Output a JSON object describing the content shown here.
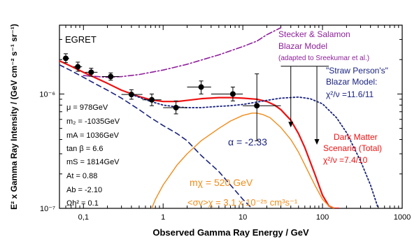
{
  "chart_data": {
    "type": "scatter",
    "xlabel": "Observed Gamma Ray Energy / GeV",
    "ylabel": "E² x Gamma Ray Intensity  / (GeV cm⁻² s⁻¹ sr⁻¹)",
    "xscale": "log",
    "yscale": "log",
    "xlim": [
      0.05,
      1000
    ],
    "ylim": [
      1e-07,
      4e-06
    ],
    "x_ticks": [
      {
        "value": 0.1,
        "label": "0,1"
      },
      {
        "value": 1,
        "label": "1"
      },
      {
        "value": 10,
        "label": "10"
      },
      {
        "value": 100,
        "label": "100"
      },
      {
        "value": 1000,
        "label": "1000"
      }
    ],
    "y_ticks": [
      {
        "value": 1e-07,
        "label": "10⁻⁷"
      },
      {
        "value": 1e-06,
        "label": "10⁻⁶"
      }
    ],
    "grid": false,
    "colors": {
      "data": "#000000",
      "total": "#ee1111",
      "dark_matter": "#f08c1a",
      "background": "#1a237e",
      "blazar_stecker": "#8e1f9a",
      "blazar_straw": "#1a237e",
      "upper_limits": "#000000"
    },
    "data_points": {
      "name": "EGRET",
      "points": [
        {
          "x": 0.06,
          "y": 2.05e-06,
          "xerr": [
            0.055,
            0.066
          ],
          "yerr": [
            1.88e-06,
            2.25e-06
          ]
        },
        {
          "x": 0.085,
          "y": 1.73e-06,
          "xerr": [
            0.075,
            0.096
          ],
          "yerr": [
            1.58e-06,
            1.9e-06
          ]
        },
        {
          "x": 0.125,
          "y": 1.55e-06,
          "xerr": [
            0.105,
            0.15
          ],
          "yerr": [
            1.43e-06,
            1.68e-06
          ]
        },
        {
          "x": 0.22,
          "y": 1.42e-06,
          "xerr": [
            0.17,
            0.28
          ],
          "yerr": [
            1.32e-06,
            1.53e-06
          ]
        },
        {
          "x": 0.4,
          "y": 9.9e-07,
          "xerr": [
            0.3,
            0.55
          ],
          "yerr": [
            9e-07,
            1.09e-06
          ]
        },
        {
          "x": 0.72,
          "y": 8.9e-07,
          "xerr": [
            0.55,
            0.95
          ],
          "yerr": [
            7.9e-07,
            1e-06
          ]
        },
        {
          "x": 1.45,
          "y": 7.6e-07,
          "xerr": [
            1.0,
            2.0
          ],
          "yerr": [
            6.7e-07,
            8.7e-07
          ]
        },
        {
          "x": 3.0,
          "y": 1.15e-06,
          "xerr": [
            2.0,
            4.0
          ],
          "yerr": [
            1e-06,
            1.3e-06
          ]
        },
        {
          "x": 7.5,
          "y": 1e-06,
          "xerr": [
            4.0,
            10.0
          ],
          "yerr": [
            8.7e-07,
            1.15e-06
          ]
        },
        {
          "x": 15.0,
          "y": 7.9e-07,
          "xerr": [
            10.0,
            30.0
          ],
          "yerr": [
            3.9e-07,
            1.5e-06
          ]
        }
      ]
    },
    "upper_limits": [
      {
        "x": 40,
        "y_top": 1.75e-06,
        "y_bottom": 5.1e-07,
        "xerr": [
          30,
          50
        ]
      },
      {
        "x": 85,
        "y_top": 1.75e-06,
        "y_bottom": 3.6e-07,
        "xerr": [
          50,
          120
        ]
      }
    ],
    "series": [
      {
        "key": "total",
        "name": "Dark Matter Scenario (Total)",
        "style": "solid",
        "x": [
          0.05,
          0.07,
          0.1,
          0.15,
          0.2,
          0.3,
          0.5,
          0.7,
          1,
          1.5,
          2,
          3,
          5,
          7,
          10,
          15,
          20,
          25,
          30,
          40,
          50,
          60,
          80,
          100,
          120,
          140,
          160
        ],
        "y": [
          1.95e-06,
          1.75e-06,
          1.55e-06,
          1.36e-06,
          1.24e-06,
          1.08e-06,
          9.5e-07,
          8.9e-07,
          8.6e-07,
          8.6e-07,
          8.8e-07,
          9.1e-07,
          9.3e-07,
          9.3e-07,
          9.2e-07,
          9e-07,
          8.6e-07,
          8e-07,
          7.3e-07,
          5.9e-07,
          4.5e-07,
          3.4e-07,
          2e-07,
          1.3e-07,
          1.05e-07,
          1e-07,
          1e-07
        ]
      },
      {
        "key": "dark_matter",
        "name": "mχ = 520 GeV",
        "style": "solid",
        "x": [
          0.72,
          0.8,
          1,
          1.5,
          2,
          3,
          5,
          7,
          10,
          13,
          15,
          18,
          22,
          30,
          40,
          50,
          60,
          80,
          100,
          120,
          140
        ],
        "y": [
          1e-07,
          1.2e-07,
          1.6e-07,
          2.4e-07,
          3e-07,
          3.9e-07,
          5e-07,
          5.8e-07,
          6.5e-07,
          6.8e-07,
          6.8e-07,
          6.6e-07,
          6.2e-07,
          5.1e-07,
          4e-07,
          3.1e-07,
          2.4e-07,
          1.6e-07,
          1.2e-07,
          1.05e-07,
          1e-07
        ]
      },
      {
        "key": "background",
        "name": "α = -2.33",
        "style": "dashed",
        "x": [
          0.05,
          0.07,
          0.1,
          0.15,
          0.2,
          0.3,
          0.5,
          0.7,
          1,
          1.5,
          2,
          3,
          5,
          7,
          10,
          13
        ],
        "y": [
          1.8e-06,
          1.6e-06,
          1.4e-06,
          1.2e-06,
          1.08e-06,
          9.2e-07,
          7.3e-07,
          6.2e-07,
          5.3e-07,
          4.5e-07,
          3.9e-07,
          2.9e-07,
          2.1e-07,
          1.6e-07,
          1.2e-07,
          1e-07
        ]
      },
      {
        "key": "blazar_stecker",
        "name": "Stecker & Salamon Blazar Model",
        "style": "dashdot",
        "x": [
          0.1,
          0.2,
          0.3,
          0.5,
          1,
          2,
          5,
          10,
          15,
          20,
          30
        ],
        "y": [
          1.45e-06,
          1.4e-06,
          1.42e-06,
          1.48e-06,
          1.62e-06,
          1.82e-06,
          2.2e-06,
          2.6e-06,
          2.9e-06,
          3.3e-06,
          3.8e-06
        ]
      },
      {
        "key": "blazar_straw",
        "name": "\"Straw Person's\" Blazar Model",
        "style": "dotted",
        "x": [
          0.4,
          0.7,
          1,
          1.5,
          2,
          3,
          5,
          7,
          10,
          15,
          20,
          30,
          50,
          70,
          100,
          150,
          200,
          300,
          400,
          500
        ],
        "y": [
          9.9e-07,
          8.6e-07,
          8e-07,
          7.7e-07,
          7.6e-07,
          7.6e-07,
          7.8e-07,
          7.9e-07,
          8.1e-07,
          8.5e-07,
          8.8e-07,
          9.2e-07,
          9.4e-07,
          9.1e-07,
          8.2e-07,
          6.2e-07,
          4.6e-07,
          2.6e-07,
          1.6e-07,
          1e-07
        ]
      }
    ],
    "annotations": {
      "egret": "EGRET",
      "stecker": [
        "Stecker & Salamon",
        "Blazar Model",
        "(adapted to Sreekumar et al.)"
      ],
      "straw": [
        "\"Straw Person's\"",
        "Blazar Model:",
        "χ²/ν =11.6/11"
      ],
      "alpha": "α = -2.33",
      "dm_scenario": [
        "Dark Matter",
        "Scenario (Total)",
        "χ²/ν =7.4/10"
      ],
      "mchi": "mχ = 520 GeV",
      "sigmav": "<σv>χ = 3.1 x 10⁻²⁵ cm³s⁻¹",
      "params": [
        "μ = 978GeV",
        "m₂ = -1035GeV",
        "mA = 1036GeV",
        "tan β = 6.6",
        "mS = 1814GeV",
        "At = 0.88",
        "Ab = -2.10",
        "Ωh² = 0.1"
      ]
    }
  }
}
